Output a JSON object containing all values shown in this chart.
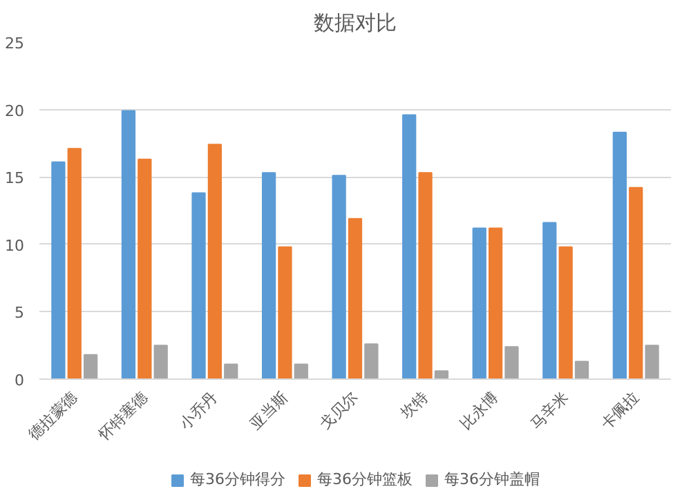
{
  "chart_data": {
    "type": "bar",
    "title": "数据对比",
    "categories": [
      "德拉蒙德",
      "怀特塞德",
      "小乔丹",
      "亚当斯",
      "戈贝尔",
      "坎特",
      "比永博",
      "马辛米",
      "卡佩拉"
    ],
    "series": [
      {
        "name": "每36分钟得分",
        "color": "#5b9bd5",
        "values": [
          16.1,
          19.9,
          13.8,
          15.3,
          15.1,
          19.6,
          11.2,
          11.6,
          18.3
        ]
      },
      {
        "name": "每36分钟篮板",
        "color": "#ed7d31",
        "values": [
          17.1,
          16.3,
          17.4,
          9.8,
          11.9,
          15.3,
          11.2,
          9.8,
          14.2
        ]
      },
      {
        "name": "每36分钟盖帽",
        "color": "#a5a5a5",
        "values": [
          1.8,
          2.5,
          1.1,
          1.1,
          2.6,
          0.6,
          2.4,
          1.3,
          2.5
        ]
      }
    ],
    "ylim": [
      0,
      25
    ],
    "yticks": [
      0,
      5,
      10,
      15,
      20,
      25
    ],
    "grid": "y",
    "legend": "bottom"
  }
}
